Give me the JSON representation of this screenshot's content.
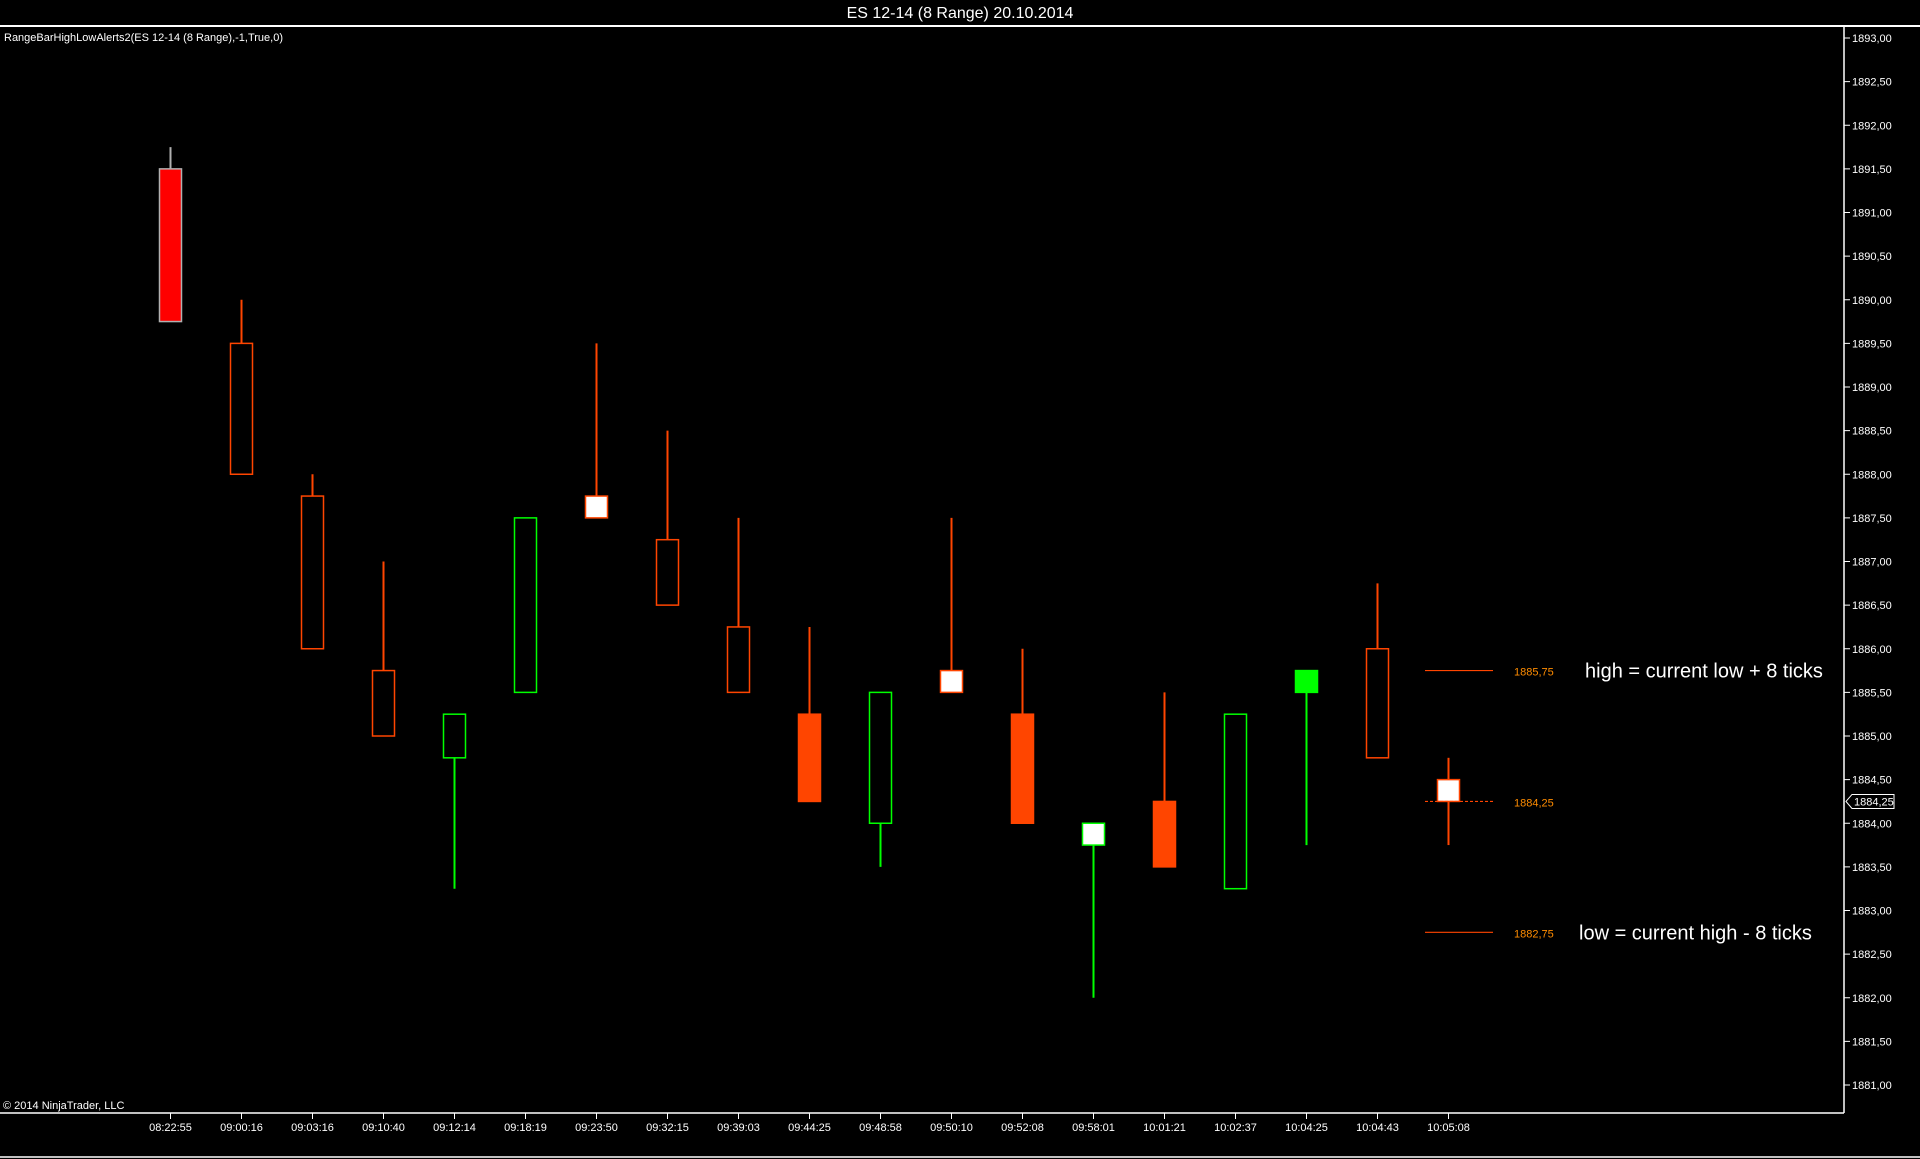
{
  "window": {
    "title": "ES 12-14 (8 Range)  20.10.2014",
    "indicator_label": "RangeBarHighLowAlerts2(ES 12-14 (8 Range),-1,True,0)",
    "copyright": "© 2014 NinjaTrader, LLC"
  },
  "colors": {
    "background": "#000000",
    "axis": "#ffffff",
    "down_first": "#ff0000",
    "down": "#ff4500",
    "up": "#00ff00",
    "doji_fill": "#ffffff",
    "level_label": "#ff8c00"
  },
  "chart_data": {
    "type": "candlestick",
    "title": "ES 12-14 (8 Range)  20.10.2014",
    "ylim": [
      1880.75,
      1893.0
    ],
    "y_ticks": [
      "1893,00",
      "1892,50",
      "1892,00",
      "1891,50",
      "1891,00",
      "1890,50",
      "1890,00",
      "1889,50",
      "1889,00",
      "1888,50",
      "1888,00",
      "1887,50",
      "1887,00",
      "1886,50",
      "1886,00",
      "1885,50",
      "1885,00",
      "1884,50",
      "1884,00",
      "1883,50",
      "1883,00",
      "1882,50",
      "1882,00",
      "1881,50",
      "1881,00"
    ],
    "y_tick_values": [
      1893,
      1892.5,
      1892,
      1891.5,
      1891,
      1890.5,
      1890,
      1889.5,
      1889,
      1888.5,
      1888,
      1887.5,
      1887,
      1886.5,
      1886,
      1885.5,
      1885,
      1884.5,
      1884,
      1883.5,
      1883,
      1882.5,
      1882,
      1881.5,
      1881
    ],
    "bars": [
      {
        "time": "08:22:55",
        "high": 1891.75,
        "low": 1889.75,
        "body_top": 1891.5,
        "body_bottom": 1889.75,
        "color": "#ff0000",
        "style": "filled",
        "outline": "#b0b0b0"
      },
      {
        "time": "09:00:16",
        "high": 1890.0,
        "low": 1888.0,
        "body_top": 1889.5,
        "body_bottom": 1888.0,
        "color": "#ff4500",
        "style": "hollow"
      },
      {
        "time": "09:03:16",
        "high": 1888.0,
        "low": 1886.0,
        "body_top": 1887.75,
        "body_bottom": 1886.0,
        "color": "#ff4500",
        "style": "hollow"
      },
      {
        "time": "09:10:40",
        "high": 1887.0,
        "low": 1885.0,
        "body_top": 1885.75,
        "body_bottom": 1885.0,
        "color": "#ff4500",
        "style": "hollow"
      },
      {
        "time": "09:12:14",
        "high": 1885.25,
        "low": 1883.25,
        "body_top": 1885.25,
        "body_bottom": 1884.75,
        "color": "#00ff00",
        "style": "hollow"
      },
      {
        "time": "09:18:19",
        "high": 1887.5,
        "low": 1885.5,
        "body_top": 1887.5,
        "body_bottom": 1885.5,
        "color": "#00ff00",
        "style": "hollow"
      },
      {
        "time": "09:23:50",
        "high": 1889.5,
        "low": 1887.5,
        "body_top": 1887.75,
        "body_bottom": 1887.5,
        "color": "#ff4500",
        "style": "white"
      },
      {
        "time": "09:32:15",
        "high": 1888.5,
        "low": 1886.5,
        "body_top": 1887.25,
        "body_bottom": 1886.5,
        "color": "#ff4500",
        "style": "hollow"
      },
      {
        "time": "09:39:03",
        "high": 1887.5,
        "low": 1885.5,
        "body_top": 1886.25,
        "body_bottom": 1885.5,
        "color": "#ff4500",
        "style": "hollow"
      },
      {
        "time": "09:44:25",
        "high": 1886.25,
        "low": 1884.25,
        "body_top": 1885.25,
        "body_bottom": 1884.25,
        "color": "#ff4500",
        "style": "filled"
      },
      {
        "time": "09:48:58",
        "high": 1885.5,
        "low": 1883.5,
        "body_top": 1885.5,
        "body_bottom": 1884.0,
        "color": "#00ff00",
        "style": "hollow"
      },
      {
        "time": "09:50:10",
        "high": 1887.5,
        "low": 1885.5,
        "body_top": 1885.75,
        "body_bottom": 1885.5,
        "color": "#ff4500",
        "style": "white"
      },
      {
        "time": "09:52:08",
        "high": 1886.0,
        "low": 1884.0,
        "body_top": 1885.25,
        "body_bottom": 1884.0,
        "color": "#ff4500",
        "style": "filled"
      },
      {
        "time": "09:58:01",
        "high": 1884.0,
        "low": 1882.0,
        "body_top": 1884.0,
        "body_bottom": 1883.75,
        "color": "#00ff00",
        "style": "white"
      },
      {
        "time": "10:01:21",
        "high": 1885.5,
        "low": 1883.5,
        "body_top": 1884.25,
        "body_bottom": 1883.5,
        "color": "#ff4500",
        "style": "filled"
      },
      {
        "time": "10:02:37",
        "high": 1885.25,
        "low": 1883.25,
        "body_top": 1885.25,
        "body_bottom": 1883.25,
        "color": "#00ff00",
        "style": "hollow"
      },
      {
        "time": "10:04:25",
        "high": 1885.75,
        "low": 1883.75,
        "body_top": 1885.75,
        "body_bottom": 1885.5,
        "color": "#00ff00",
        "style": "filled"
      },
      {
        "time": "10:04:43",
        "high": 1886.75,
        "low": 1884.75,
        "body_top": 1886.0,
        "body_bottom": 1884.75,
        "color": "#ff4500",
        "style": "hollow"
      },
      {
        "time": "10:05:08",
        "high": 1884.75,
        "low": 1883.75,
        "body_top": 1884.5,
        "body_bottom": 1884.25,
        "color": "#ff4500",
        "style": "white"
      }
    ],
    "levels": [
      {
        "value": 1885.75,
        "label": "1885,75",
        "annotation": "high = current low + 8 ticks",
        "style": "solid"
      },
      {
        "value": 1884.25,
        "label": "1884,25",
        "annotation": "",
        "style": "dashed"
      },
      {
        "value": 1882.75,
        "label": "1882,75",
        "annotation": "low = current high - 8 ticks",
        "style": "solid"
      }
    ],
    "last_price": {
      "value": 1884.25,
      "label": "1884,25"
    }
  }
}
